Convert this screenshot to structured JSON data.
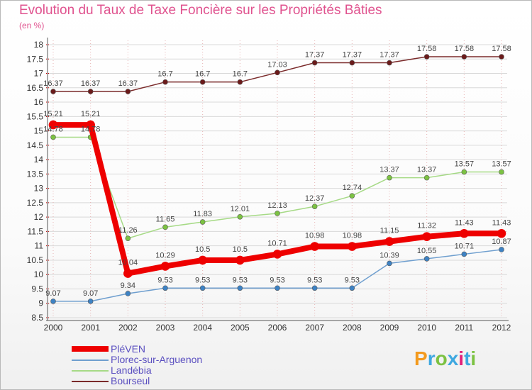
{
  "header": {
    "title": "Evolution du Taux de Taxe Foncière sur les Propriétés Bâties",
    "subtitle": "(en %)"
  },
  "logo": {
    "letters": [
      "P",
      "r",
      "o",
      "x",
      "i",
      "t",
      "i"
    ],
    "colors": [
      "#f39a1e",
      "#3fa8e0",
      "#7cc242",
      "#3fa8e0",
      "#e2207a",
      "#3fa8e0",
      "#7cc242"
    ]
  },
  "colors": {
    "title": "#e0538f",
    "axis": "#555555",
    "grid": "#cc0000"
  },
  "chart_data": {
    "type": "line",
    "title": "Evolution du Taux de Taxe Foncière sur les Propriétés Bâties",
    "ylabel": "(en %)",
    "xlabel": "",
    "x": [
      "2000",
      "2001",
      "2002",
      "2003",
      "2004",
      "2005",
      "2006",
      "2007",
      "2008",
      "2009",
      "2010",
      "2011",
      "2012"
    ],
    "ylim": [
      8.5,
      18
    ],
    "yticks": [
      "8.5",
      "9",
      "9.5",
      "10",
      "10.5",
      "11",
      "11.5",
      "12",
      "12.5",
      "13",
      "13.5",
      "14",
      "14.5",
      "15",
      "15.5",
      "16",
      "16.5",
      "17",
      "17.5",
      "18"
    ],
    "legend_position": "bottom-left",
    "series": [
      {
        "name": "PléVEN",
        "color": "#ee0000",
        "marker": "#ee0000",
        "width": 8,
        "values": [
          15.21,
          15.21,
          10.04,
          10.29,
          10.5,
          10.5,
          10.71,
          10.98,
          10.98,
          11.15,
          11.32,
          11.43,
          11.43
        ],
        "labels": [
          "15.21",
          "15.21",
          "10.04",
          "10.29",
          "10.5",
          "10.5",
          "10.71",
          "10.98",
          "10.98",
          "11.15",
          "11.32",
          "11.43",
          "11.43"
        ]
      },
      {
        "name": "Plorec-sur-Arguenon",
        "color": "#6f9fcf",
        "marker": "#3d82c4",
        "width": 1.5,
        "values": [
          9.07,
          9.07,
          9.34,
          9.53,
          9.53,
          9.53,
          9.53,
          9.53,
          9.53,
          10.39,
          10.55,
          10.71,
          10.87
        ],
        "labels": [
          "9.07",
          "9.07",
          "9.34",
          "9.53",
          "9.53",
          "9.53",
          "9.53",
          "9.53",
          "9.53",
          "10.39",
          "10.55",
          "10.71",
          "10.87"
        ]
      },
      {
        "name": "Landébia",
        "color": "#a6da86",
        "marker": "#7cc242",
        "width": 1.5,
        "values": [
          14.78,
          14.78,
          11.26,
          11.65,
          11.83,
          12.01,
          12.13,
          12.37,
          12.74,
          13.37,
          13.37,
          13.57,
          13.57
        ],
        "labels": [
          "14.78",
          "14.78",
          "11.26",
          "11.65",
          "11.83",
          "12.01",
          "12.13",
          "12.37",
          "12.74",
          "13.37",
          "13.37",
          "13.57",
          "13.57"
        ]
      },
      {
        "name": "Bourseul",
        "color": "#7a2a2a",
        "marker": "#6b1a1a",
        "width": 1.5,
        "values": [
          16.37,
          16.37,
          16.37,
          16.7,
          16.7,
          16.7,
          17.03,
          17.37,
          17.37,
          17.37,
          17.58,
          17.58,
          17.58
        ],
        "labels": [
          "16.37",
          "16.37",
          "16.37",
          "16.7",
          "16.7",
          "16.7",
          "17.03",
          "17.37",
          "17.37",
          "17.37",
          "17.58",
          "17.58",
          "17.58"
        ]
      }
    ]
  }
}
